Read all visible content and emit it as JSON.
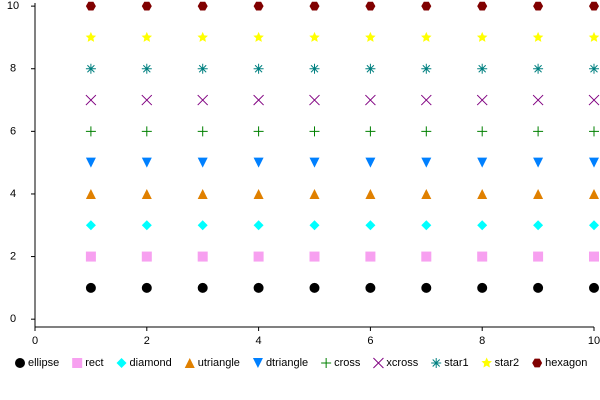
{
  "chart_data": {
    "type": "scatter",
    "x": [
      1,
      2,
      3,
      4,
      5,
      6,
      7,
      8,
      9,
      10
    ],
    "series": [
      {
        "name": "ellipse",
        "color": "#000000",
        "values": [
          1,
          1,
          1,
          1,
          1,
          1,
          1,
          1,
          1,
          1
        ]
      },
      {
        "name": "rect",
        "color": "#f7a0f0",
        "values": [
          2,
          2,
          2,
          2,
          2,
          2,
          2,
          2,
          2,
          2
        ]
      },
      {
        "name": "diamond",
        "color": "#00ffff",
        "values": [
          3,
          3,
          3,
          3,
          3,
          3,
          3,
          3,
          3,
          3
        ]
      },
      {
        "name": "utriangle",
        "color": "#e08000",
        "values": [
          4,
          4,
          4,
          4,
          4,
          4,
          4,
          4,
          4,
          4
        ]
      },
      {
        "name": "dtriangle",
        "color": "#0080ff",
        "values": [
          5,
          5,
          5,
          5,
          5,
          5,
          5,
          5,
          5,
          5
        ]
      },
      {
        "name": "cross",
        "color": "#008000",
        "values": [
          6,
          6,
          6,
          6,
          6,
          6,
          6,
          6,
          6,
          6
        ]
      },
      {
        "name": "xcross",
        "color": "#800080",
        "values": [
          7,
          7,
          7,
          7,
          7,
          7,
          7,
          7,
          7,
          7
        ]
      },
      {
        "name": "star1",
        "color": "#008080",
        "values": [
          8,
          8,
          8,
          8,
          8,
          8,
          8,
          8,
          8,
          8
        ]
      },
      {
        "name": "star2",
        "color": "#ffff00",
        "values": [
          9,
          9,
          9,
          9,
          9,
          9,
          9,
          9,
          9,
          9
        ]
      },
      {
        "name": "hexagon",
        "color": "#800000",
        "values": [
          10,
          10,
          10,
          10,
          10,
          10,
          10,
          10,
          10,
          10
        ]
      }
    ],
    "xlim": [
      0,
      10
    ],
    "xticks": [
      0,
      2,
      4,
      6,
      8,
      10
    ],
    "ylim": [
      -0.25,
      10.1
    ],
    "yticks": [
      0,
      2,
      4,
      6,
      8,
      10
    ],
    "grid": false,
    "legend": "bottom"
  }
}
